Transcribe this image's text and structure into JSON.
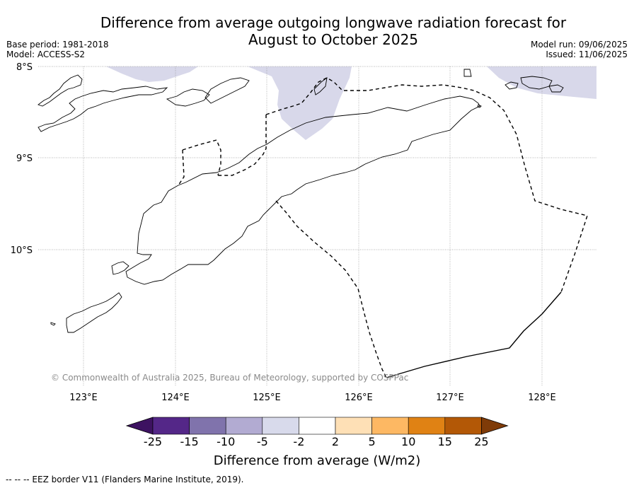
{
  "title": {
    "line1": "Difference from average outgoing longwave radiation forecast for",
    "line2": "August to October 2025"
  },
  "meta": {
    "base_period": "Base period: 1981-2018",
    "model": "Model: ACCESS-S2",
    "model_run": "Model run: 09/06/2025",
    "issued": "Issued: 11/06/2025"
  },
  "map": {
    "lat_labels": [
      "8°S",
      "9°S",
      "10°S"
    ],
    "lon_labels": [
      "123°E",
      "124°E",
      "125°E",
      "126°E",
      "127°E",
      "128°E"
    ],
    "copyright": "© Commonwealth of Australia 2025, Bureau of Meteorology, supported by COSPPac",
    "anomaly_color": "#d8d8ea",
    "anomaly_class": "-5 to -2"
  },
  "colorbar": {
    "ticks": [
      "-25",
      "-15",
      "-10",
      "-5",
      "-2",
      "2",
      "5",
      "10",
      "15",
      "25"
    ],
    "colors": [
      "#3d1261",
      "#542788",
      "#8073ac",
      "#b2abd2",
      "#d8daeb",
      "#ffffff",
      "#fee0b6",
      "#fdb863",
      "#e08214",
      "#b35806",
      "#7f3b08"
    ],
    "label": "Difference from average (W/m2)"
  },
  "legend": {
    "eez_note": "--  --  -- EEZ border V11 (Flanders Marine Institute, 2019)."
  }
}
